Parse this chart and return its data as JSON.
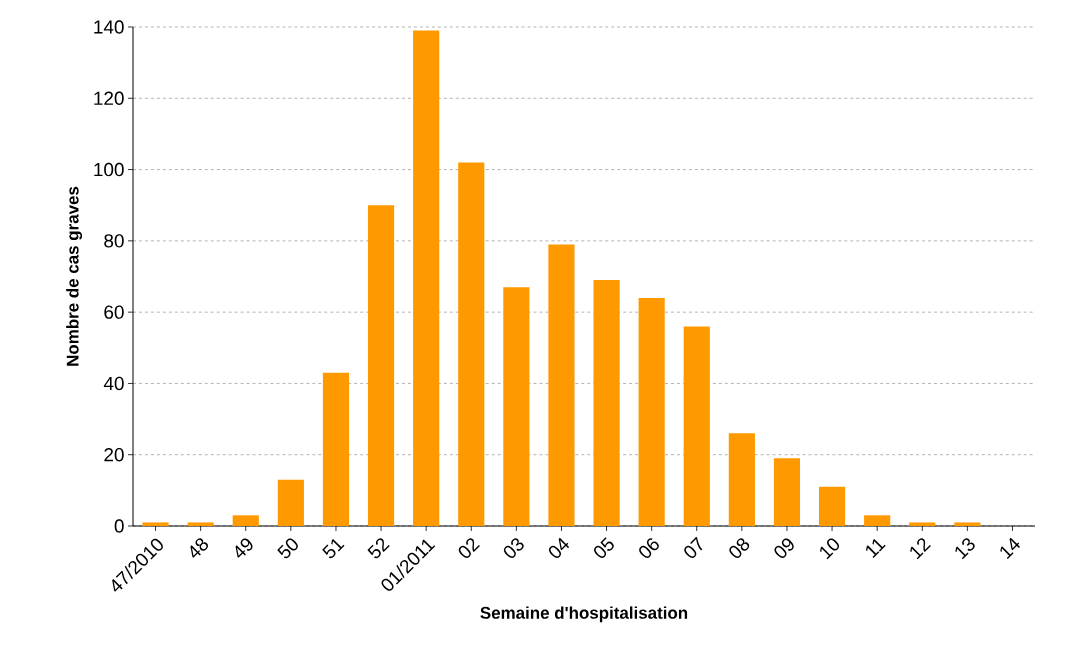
{
  "chart_data": {
    "type": "bar",
    "xlabel": "Semaine d'hospitalisation",
    "ylabel": "Nombre de cas graves",
    "categories": [
      "47/2010",
      "48",
      "49",
      "50",
      "51",
      "52",
      "01/2011",
      "02",
      "03",
      "04",
      "05",
      "06",
      "07",
      "08",
      "09",
      "10",
      "11",
      "12",
      "13",
      "14"
    ],
    "values": [
      1,
      1,
      3,
      13,
      43,
      90,
      139,
      102,
      67,
      79,
      69,
      64,
      56,
      26,
      19,
      11,
      3,
      1,
      1,
      null
    ],
    "color": "#ff9900",
    "ylim": [
      0,
      140
    ],
    "yticks": [
      0,
      20,
      40,
      60,
      80,
      100,
      120,
      140
    ],
    "grid": "y"
  }
}
